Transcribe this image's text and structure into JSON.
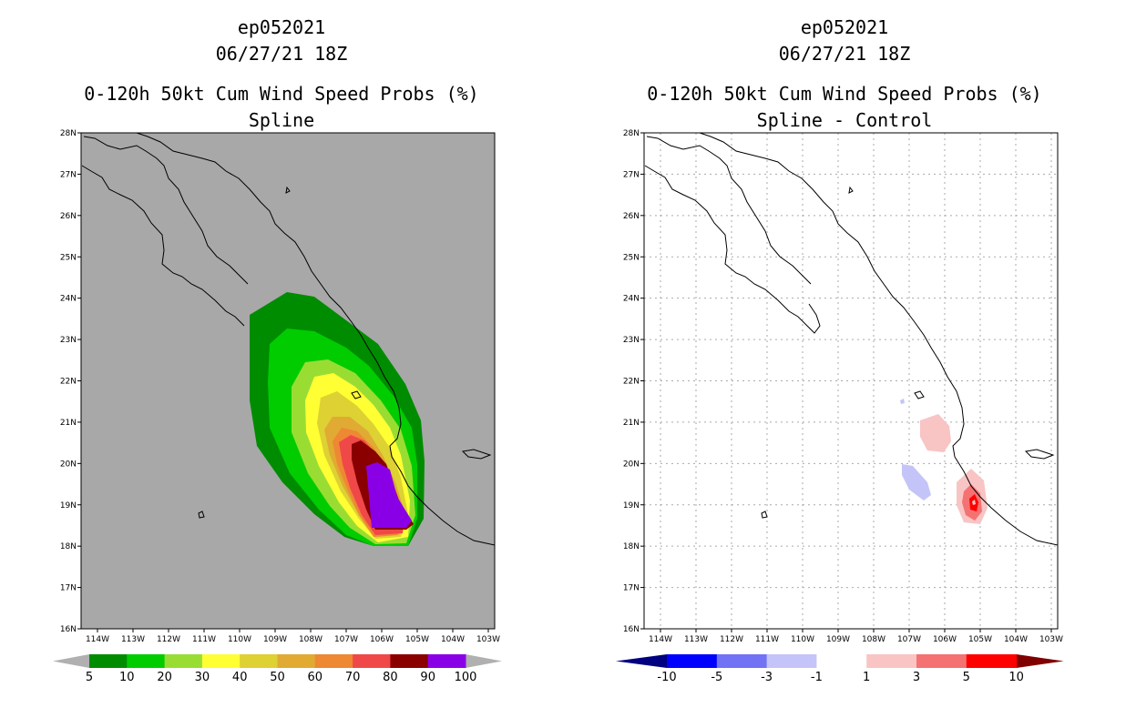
{
  "panels": [
    {
      "id": "left",
      "storm_id": "ep052021",
      "datetime": "06/27/21 18Z",
      "product": "0-120h 50kt Cum Wind Speed Probs (%)",
      "subtitle": "Spline",
      "background": "#a8a8a8",
      "legend": {
        "labels": [
          "5",
          "10",
          "20",
          "30",
          "40",
          "50",
          "60",
          "70",
          "80",
          "90",
          "100"
        ],
        "colors": [
          "#008c00",
          "#00cc00",
          "#99dd33",
          "#ffff33",
          "#ddd133",
          "#e0aa33",
          "#ee8833",
          "#f04848",
          "#8a0000",
          "#8a00e6"
        ],
        "end_color": "#b0b0b0"
      }
    },
    {
      "id": "right",
      "storm_id": "ep052021",
      "datetime": "06/27/21 18Z",
      "product": "0-120h 50kt Cum Wind Speed Probs (%)",
      "subtitle": "Spline - Control",
      "background": "#ffffff",
      "legend": {
        "labels": [
          "-10",
          "-5",
          "-3",
          "-1",
          "1",
          "3",
          "5",
          "10"
        ],
        "colors": [
          "#0000ff",
          "#7272f4",
          "#c4c4f8",
          "#ffffff",
          "#f8c4c4",
          "#f47272",
          "#ff0000"
        ],
        "end_left": "#000080",
        "end_right": "#800000"
      }
    }
  ],
  "axes": {
    "lon_labels": [
      "114W",
      "113W",
      "112W",
      "111W",
      "110W",
      "109W",
      "108W",
      "107W",
      "106W",
      "105W",
      "104W",
      "103W"
    ],
    "lat_labels": [
      "16N",
      "17N",
      "18N",
      "19N",
      "20N",
      "21N",
      "22N",
      "23N",
      "24N",
      "25N",
      "26N",
      "27N",
      "28N"
    ]
  }
}
